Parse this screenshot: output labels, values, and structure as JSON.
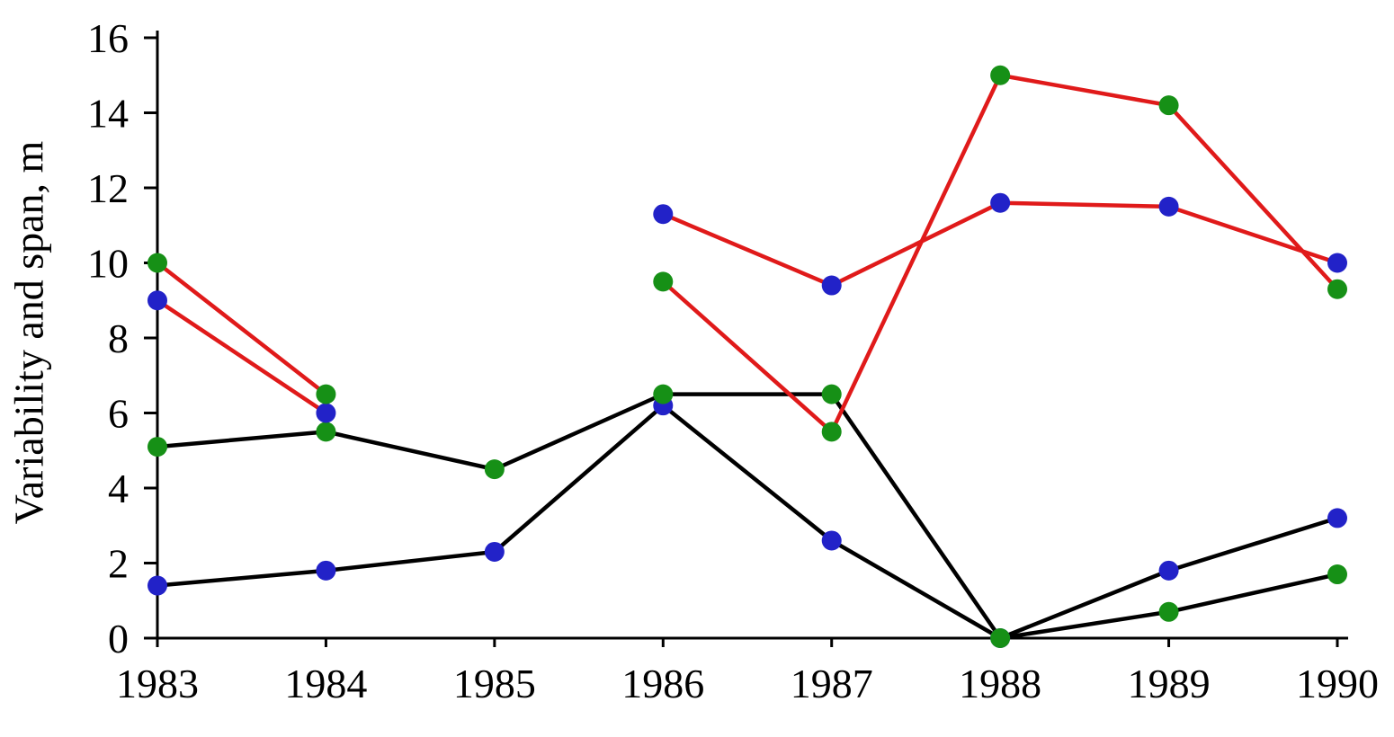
{
  "page": {
    "background": "#ffffff"
  },
  "chart_data": {
    "type": "line",
    "title": "",
    "xlabel": "",
    "ylabel": "Variability and span, m",
    "categories": [
      "1983",
      "1984",
      "1985",
      "1986",
      "1987",
      "1988",
      "1989",
      "1990"
    ],
    "ylim": [
      0,
      16
    ],
    "yticks": [
      0,
      2,
      4,
      6,
      8,
      10,
      12,
      14,
      16
    ],
    "grid": false,
    "legend": "none",
    "colors": {
      "red_line": "#e01a1a",
      "black_line": "#000000",
      "green_marker": "#169016",
      "blue_marker": "#2222c8"
    },
    "series": [
      {
        "name": "black-line-blue-markers",
        "line_color": "#000000",
        "marker_color": "#2222c8",
        "values": [
          1.4,
          1.8,
          2.3,
          6.2,
          2.6,
          0,
          1.8,
          3.2
        ]
      },
      {
        "name": "black-line-green-markers",
        "line_color": "#000000",
        "marker_color": "#169016",
        "values": [
          5.1,
          5.5,
          4.5,
          6.5,
          6.5,
          0,
          0.7,
          1.7
        ]
      },
      {
        "name": "red-line-blue-markers",
        "line_color": "#e01a1a",
        "marker_color": "#2222c8",
        "values": [
          9.0,
          6.0,
          null,
          11.3,
          9.4,
          11.6,
          11.5,
          10.0
        ]
      },
      {
        "name": "red-line-green-markers",
        "line_color": "#e01a1a",
        "marker_color": "#169016",
        "values": [
          10.0,
          6.5,
          null,
          9.5,
          5.5,
          15.0,
          14.2,
          9.3
        ]
      }
    ]
  }
}
